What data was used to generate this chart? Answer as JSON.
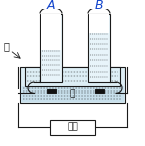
{
  "bg_color": "#ffffff",
  "line_color": "#1a1a1a",
  "label_A": "A",
  "label_B": "B",
  "label_water_cn": "水",
  "label_battery_cn": "电池",
  "label_water2_cn": "水",
  "tube_fill": "#e8f4fa",
  "gas_fill": "#ffffff",
  "trough_fill": "#ddeef5",
  "trough_water_fill": "#c8e0ec",
  "shelf_fill": "#ddeef5"
}
